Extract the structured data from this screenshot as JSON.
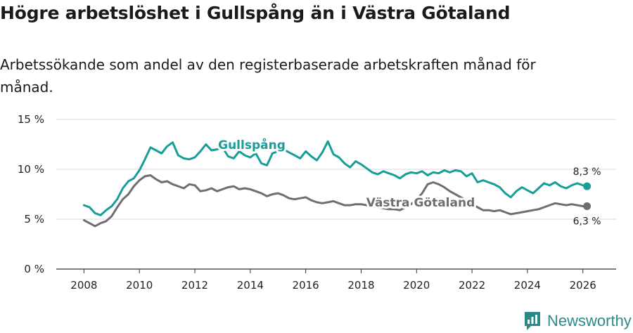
{
  "chart_data": {
    "type": "line",
    "title": "Högre arbetslöshet i Gullspång än i Västra Götaland",
    "subtitle": "Arbetssökande som andel av den registerbaserade arbetskraften månad för månad.",
    "xlabel": "",
    "ylabel": "",
    "xlim": [
      2007.0,
      2027.2
    ],
    "ylim": [
      0,
      15
    ],
    "x_ticks": [
      {
        "value": 2008,
        "label": "2008"
      },
      {
        "value": 2010,
        "label": "2010"
      },
      {
        "value": 2012,
        "label": "2012"
      },
      {
        "value": 2014,
        "label": "2014"
      },
      {
        "value": 2016,
        "label": "2016"
      },
      {
        "value": 2018,
        "label": "2018"
      },
      {
        "value": 2020,
        "label": "2020"
      },
      {
        "value": 2022,
        "label": "2022"
      },
      {
        "value": 2024,
        "label": "2024"
      },
      {
        "value": 2026,
        "label": "2026"
      }
    ],
    "y_ticks": [
      {
        "value": 0,
        "label": "0 %"
      },
      {
        "value": 5,
        "label": "5 %"
      },
      {
        "value": 10,
        "label": "10 %"
      },
      {
        "value": 15,
        "label": "15 %"
      }
    ],
    "grid": true,
    "series": [
      {
        "name": "Gullspång",
        "color": "#169e97",
        "end_label": "8,3 %",
        "points": [
          [
            2008.0,
            6.4
          ],
          [
            2008.2,
            6.2
          ],
          [
            2008.4,
            5.6
          ],
          [
            2008.6,
            5.4
          ],
          [
            2008.8,
            5.9
          ],
          [
            2009.0,
            6.3
          ],
          [
            2009.2,
            7.0
          ],
          [
            2009.4,
            8.1
          ],
          [
            2009.6,
            8.8
          ],
          [
            2009.8,
            9.1
          ],
          [
            2010.0,
            9.9
          ],
          [
            2010.2,
            11.0
          ],
          [
            2010.4,
            12.2
          ],
          [
            2010.6,
            11.9
          ],
          [
            2010.8,
            11.6
          ],
          [
            2011.0,
            12.3
          ],
          [
            2011.2,
            12.7
          ],
          [
            2011.4,
            11.4
          ],
          [
            2011.6,
            11.1
          ],
          [
            2011.8,
            11.0
          ],
          [
            2012.0,
            11.2
          ],
          [
            2012.2,
            11.8
          ],
          [
            2012.4,
            12.5
          ],
          [
            2012.6,
            11.9
          ],
          [
            2012.8,
            12.0
          ],
          [
            2013.0,
            12.2
          ],
          [
            2013.2,
            11.3
          ],
          [
            2013.4,
            11.1
          ],
          [
            2013.6,
            11.8
          ],
          [
            2013.8,
            11.4
          ],
          [
            2014.0,
            11.2
          ],
          [
            2014.2,
            11.6
          ],
          [
            2014.4,
            10.6
          ],
          [
            2014.6,
            10.4
          ],
          [
            2014.8,
            11.6
          ],
          [
            2015.0,
            11.8
          ],
          [
            2015.2,
            12.0
          ],
          [
            2015.4,
            11.7
          ],
          [
            2015.6,
            11.4
          ],
          [
            2015.8,
            11.1
          ],
          [
            2016.0,
            11.8
          ],
          [
            2016.2,
            11.3
          ],
          [
            2016.4,
            10.9
          ],
          [
            2016.6,
            11.7
          ],
          [
            2016.8,
            12.8
          ],
          [
            2017.0,
            11.5
          ],
          [
            2017.2,
            11.2
          ],
          [
            2017.4,
            10.6
          ],
          [
            2017.6,
            10.2
          ],
          [
            2017.8,
            10.8
          ],
          [
            2018.0,
            10.5
          ],
          [
            2018.2,
            10.1
          ],
          [
            2018.4,
            9.7
          ],
          [
            2018.6,
            9.5
          ],
          [
            2018.8,
            9.8
          ],
          [
            2019.0,
            9.6
          ],
          [
            2019.2,
            9.4
          ],
          [
            2019.4,
            9.1
          ],
          [
            2019.6,
            9.5
          ],
          [
            2019.8,
            9.7
          ],
          [
            2020.0,
            9.6
          ],
          [
            2020.2,
            9.8
          ],
          [
            2020.4,
            9.4
          ],
          [
            2020.6,
            9.7
          ],
          [
            2020.8,
            9.6
          ],
          [
            2021.0,
            9.9
          ],
          [
            2021.2,
            9.7
          ],
          [
            2021.4,
            9.9
          ],
          [
            2021.6,
            9.8
          ],
          [
            2021.8,
            9.3
          ],
          [
            2022.0,
            9.6
          ],
          [
            2022.2,
            8.7
          ],
          [
            2022.4,
            8.9
          ],
          [
            2022.6,
            8.7
          ],
          [
            2022.8,
            8.5
          ],
          [
            2023.0,
            8.2
          ],
          [
            2023.2,
            7.6
          ],
          [
            2023.4,
            7.2
          ],
          [
            2023.6,
            7.8
          ],
          [
            2023.8,
            8.2
          ],
          [
            2024.0,
            7.9
          ],
          [
            2024.2,
            7.6
          ],
          [
            2024.4,
            8.1
          ],
          [
            2024.6,
            8.6
          ],
          [
            2024.8,
            8.4
          ],
          [
            2025.0,
            8.7
          ],
          [
            2025.2,
            8.3
          ],
          [
            2025.4,
            8.1
          ],
          [
            2025.6,
            8.4
          ],
          [
            2025.8,
            8.6
          ],
          [
            2026.0,
            8.4
          ],
          [
            2026.15,
            8.3
          ]
        ]
      },
      {
        "name": "Västra Götaland",
        "color": "#6e6e73",
        "end_label": "6,3 %",
        "points": [
          [
            2008.0,
            4.9
          ],
          [
            2008.2,
            4.6
          ],
          [
            2008.4,
            4.3
          ],
          [
            2008.6,
            4.6
          ],
          [
            2008.8,
            4.8
          ],
          [
            2009.0,
            5.3
          ],
          [
            2009.2,
            6.2
          ],
          [
            2009.4,
            7.0
          ],
          [
            2009.6,
            7.5
          ],
          [
            2009.8,
            8.3
          ],
          [
            2010.0,
            8.9
          ],
          [
            2010.2,
            9.3
          ],
          [
            2010.4,
            9.4
          ],
          [
            2010.6,
            9.0
          ],
          [
            2010.8,
            8.7
          ],
          [
            2011.0,
            8.8
          ],
          [
            2011.2,
            8.5
          ],
          [
            2011.4,
            8.3
          ],
          [
            2011.6,
            8.1
          ],
          [
            2011.8,
            8.5
          ],
          [
            2012.0,
            8.4
          ],
          [
            2012.2,
            7.8
          ],
          [
            2012.4,
            7.9
          ],
          [
            2012.6,
            8.1
          ],
          [
            2012.8,
            7.8
          ],
          [
            2013.0,
            8.0
          ],
          [
            2013.2,
            8.2
          ],
          [
            2013.4,
            8.3
          ],
          [
            2013.6,
            8.0
          ],
          [
            2013.8,
            8.1
          ],
          [
            2014.0,
            8.0
          ],
          [
            2014.2,
            7.8
          ],
          [
            2014.4,
            7.6
          ],
          [
            2014.6,
            7.3
          ],
          [
            2014.8,
            7.5
          ],
          [
            2015.0,
            7.6
          ],
          [
            2015.2,
            7.4
          ],
          [
            2015.4,
            7.1
          ],
          [
            2015.6,
            7.0
          ],
          [
            2015.8,
            7.1
          ],
          [
            2016.0,
            7.2
          ],
          [
            2016.2,
            6.9
          ],
          [
            2016.4,
            6.7
          ],
          [
            2016.6,
            6.6
          ],
          [
            2016.8,
            6.7
          ],
          [
            2017.0,
            6.8
          ],
          [
            2017.2,
            6.6
          ],
          [
            2017.4,
            6.4
          ],
          [
            2017.6,
            6.4
          ],
          [
            2017.8,
            6.5
          ],
          [
            2018.0,
            6.5
          ],
          [
            2018.2,
            6.4
          ],
          [
            2018.4,
            6.3
          ],
          [
            2018.6,
            6.2
          ],
          [
            2018.8,
            6.1
          ],
          [
            2019.0,
            6.0
          ],
          [
            2019.2,
            6.0
          ],
          [
            2019.4,
            5.9
          ],
          [
            2019.6,
            6.2
          ],
          [
            2019.8,
            6.5
          ],
          [
            2020.0,
            7.0
          ],
          [
            2020.2,
            7.6
          ],
          [
            2020.4,
            8.5
          ],
          [
            2020.6,
            8.7
          ],
          [
            2020.8,
            8.5
          ],
          [
            2021.0,
            8.2
          ],
          [
            2021.2,
            7.8
          ],
          [
            2021.4,
            7.5
          ],
          [
            2021.6,
            7.2
          ],
          [
            2021.8,
            6.9
          ],
          [
            2022.0,
            6.5
          ],
          [
            2022.2,
            6.2
          ],
          [
            2022.4,
            5.9
          ],
          [
            2022.6,
            5.9
          ],
          [
            2022.8,
            5.8
          ],
          [
            2023.0,
            5.9
          ],
          [
            2023.2,
            5.7
          ],
          [
            2023.4,
            5.5
          ],
          [
            2023.6,
            5.6
          ],
          [
            2023.8,
            5.7
          ],
          [
            2024.0,
            5.8
          ],
          [
            2024.2,
            5.9
          ],
          [
            2024.4,
            6.0
          ],
          [
            2024.6,
            6.2
          ],
          [
            2024.8,
            6.4
          ],
          [
            2025.0,
            6.6
          ],
          [
            2025.2,
            6.5
          ],
          [
            2025.4,
            6.4
          ],
          [
            2025.6,
            6.5
          ],
          [
            2025.8,
            6.4
          ],
          [
            2026.0,
            6.3
          ],
          [
            2026.15,
            6.3
          ]
        ]
      }
    ]
  },
  "branding": {
    "name": "Newsworthy"
  }
}
